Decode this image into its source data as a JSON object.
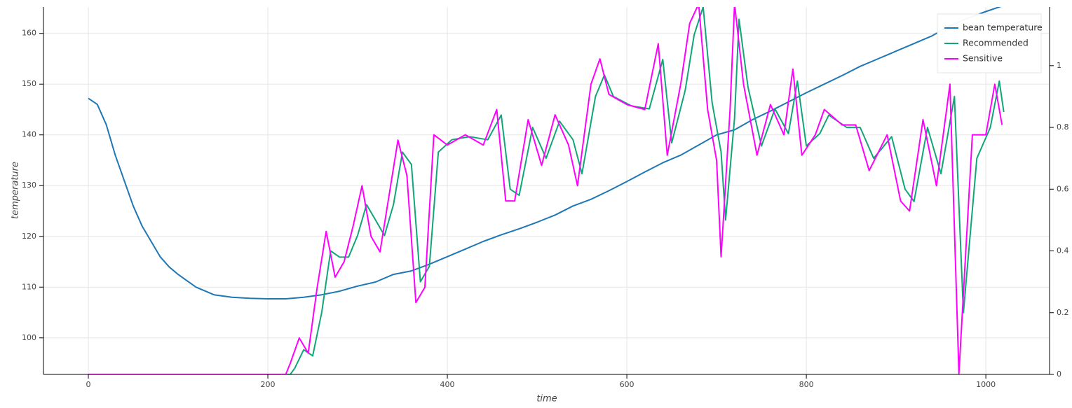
{
  "chart_data": {
    "type": "line",
    "xlabel": "time",
    "ylabel": "temperature",
    "xlim": [
      -50,
      1071
    ],
    "xticks": [
      0,
      200,
      400,
      600,
      800,
      1000
    ],
    "ylim": [
      92.8,
      165.2
    ],
    "yticks": [
      100,
      110,
      120,
      130,
      140,
      150,
      160
    ],
    "y2lim": [
      0,
      1.19
    ],
    "y2ticks": [
      0,
      0.2,
      0.4,
      0.6,
      0.8,
      1
    ],
    "grid": true,
    "legend": "top-right",
    "series": [
      {
        "name": "bean temperature",
        "color": "#1f77b4",
        "axis": "y",
        "x": [
          0,
          10,
          20,
          30,
          40,
          50,
          60,
          70,
          80,
          90,
          100,
          120,
          140,
          160,
          180,
          200,
          220,
          240,
          260,
          280,
          300,
          320,
          340,
          360,
          380,
          400,
          420,
          440,
          460,
          480,
          500,
          520,
          540,
          560,
          580,
          600,
          620,
          640,
          660,
          680,
          700,
          720,
          740,
          760,
          780,
          800,
          820,
          840,
          860,
          880,
          900,
          920,
          940,
          960,
          980,
          1000,
          1020
        ],
        "values": [
          147.2,
          146,
          142,
          136,
          131,
          126,
          122,
          119,
          116,
          114,
          112.5,
          110,
          108.5,
          108,
          107.8,
          107.7,
          107.7,
          108,
          108.5,
          109.2,
          110.2,
          111,
          112.5,
          113.2,
          114.5,
          116,
          117.5,
          119,
          120.3,
          121.5,
          122.8,
          124.2,
          126,
          127.3,
          129,
          130.8,
          132.7,
          134.5,
          136,
          138,
          140,
          141,
          143,
          144.7,
          146.5,
          148.3,
          150,
          151.7,
          153.5,
          155,
          156.5,
          158,
          159.5,
          161.5,
          163,
          164.3,
          165.5
        ]
      },
      {
        "name": "Recommended",
        "color": "#11a579",
        "axis": "y2",
        "x": [
          0,
          225,
          230,
          240,
          250,
          260,
          270,
          280,
          290,
          300,
          310,
          320,
          330,
          340,
          350,
          360,
          370,
          380,
          390,
          405,
          425,
          445,
          460,
          470,
          480,
          495,
          510,
          525,
          540,
          550,
          565,
          575,
          585,
          605,
          625,
          640,
          650,
          665,
          675,
          685,
          695,
          705,
          710,
          720,
          725,
          735,
          750,
          765,
          780,
          790,
          800,
          815,
          825,
          845,
          860,
          875,
          895,
          910,
          920,
          935,
          950,
          965,
          975,
          990,
          1005,
          1015,
          1020
        ],
        "values": [
          0,
          0,
          0.02,
          0.08,
          0.06,
          0.2,
          0.4,
          0.38,
          0.38,
          0.45,
          0.55,
          0.5,
          0.45,
          0.55,
          0.72,
          0.68,
          0.3,
          0.35,
          0.72,
          0.76,
          0.77,
          0.76,
          0.84,
          0.6,
          0.58,
          0.8,
          0.7,
          0.82,
          0.76,
          0.65,
          0.9,
          0.97,
          0.9,
          0.87,
          0.86,
          1.02,
          0.75,
          0.92,
          1.1,
          1.19,
          0.88,
          0.72,
          0.5,
          0.83,
          1.15,
          0.93,
          0.74,
          0.86,
          0.78,
          0.95,
          0.74,
          0.78,
          0.84,
          0.8,
          0.8,
          0.7,
          0.77,
          0.6,
          0.56,
          0.8,
          0.65,
          0.9,
          0.2,
          0.7,
          0.8,
          0.95,
          0.85
        ]
      },
      {
        "name": "Sensitive",
        "color": "#ff00ff",
        "axis": "y2",
        "x": [
          0,
          220,
          225,
          235,
          245,
          255,
          265,
          275,
          285,
          295,
          305,
          315,
          325,
          335,
          345,
          355,
          365,
          375,
          385,
          400,
          420,
          440,
          455,
          465,
          475,
          490,
          505,
          520,
          535,
          545,
          560,
          570,
          580,
          600,
          620,
          635,
          645,
          660,
          670,
          680,
          690,
          700,
          705,
          715,
          720,
          730,
          745,
          760,
          775,
          785,
          795,
          810,
          820,
          840,
          855,
          870,
          890,
          905,
          915,
          930,
          945,
          960,
          970,
          985,
          1000,
          1010,
          1018
        ],
        "values": [
          0,
          0,
          0.036,
          0.118,
          0.069,
          0.282,
          0.463,
          0.315,
          0.365,
          0.48,
          0.611,
          0.447,
          0.397,
          0.578,
          0.759,
          0.644,
          0.233,
          0.282,
          0.776,
          0.743,
          0.776,
          0.743,
          0.858,
          0.562,
          0.562,
          0.825,
          0.677,
          0.841,
          0.743,
          0.611,
          0.94,
          1.022,
          0.907,
          0.874,
          0.858,
          1.071,
          0.71,
          0.94,
          1.137,
          1.2,
          0.858,
          0.693,
          0.381,
          0.858,
          1.2,
          0.94,
          0.71,
          0.874,
          0.776,
          0.989,
          0.71,
          0.776,
          0.858,
          0.808,
          0.808,
          0.66,
          0.776,
          0.562,
          0.529,
          0.825,
          0.611,
          0.94,
          0.003,
          0.776,
          0.776,
          0.94,
          0.808
        ]
      }
    ]
  }
}
